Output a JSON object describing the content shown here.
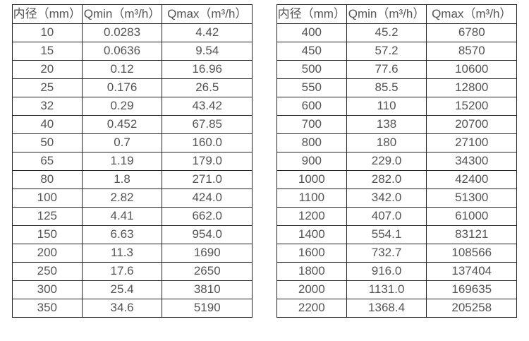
{
  "page": {
    "background_color": "#ffffff",
    "border_color": "#262626",
    "text_color": "#545454"
  },
  "table_left": {
    "headers": [
      "内径（mm）",
      "Qmin（m³/h）",
      "Qmax（m³/h）"
    ],
    "rows": [
      [
        "10",
        "0.0283",
        "4.42"
      ],
      [
        "15",
        "0.0636",
        "9.54"
      ],
      [
        "20",
        "0.12",
        "16.96"
      ],
      [
        "25",
        "0.176",
        "26.5"
      ],
      [
        "32",
        "0.29",
        "43.42"
      ],
      [
        "40",
        "0.452",
        "67.85"
      ],
      [
        "50",
        "0.7",
        "160.0"
      ],
      [
        "65",
        "1.19",
        "179.0"
      ],
      [
        "80",
        "1.8",
        "271.0"
      ],
      [
        "100",
        "2.82",
        "424.0"
      ],
      [
        "125",
        "4.41",
        "662.0"
      ],
      [
        "150",
        "6.63",
        "954.0"
      ],
      [
        "200",
        "11.3",
        "1690"
      ],
      [
        "250",
        "17.6",
        "2650"
      ],
      [
        "300",
        "25.4",
        "3810"
      ],
      [
        "350",
        "34.6",
        "5190"
      ]
    ]
  },
  "table_right": {
    "headers": [
      "内径（mm）",
      "Qmin（m³/h）",
      "Qmax（m³/h）"
    ],
    "rows": [
      [
        "400",
        "45.2",
        "6780"
      ],
      [
        "450",
        "57.2",
        "8570"
      ],
      [
        "500",
        "77.6",
        "10600"
      ],
      [
        "550",
        "85.5",
        "12800"
      ],
      [
        "600",
        "110",
        "15200"
      ],
      [
        "700",
        "138",
        "20700"
      ],
      [
        "800",
        "180",
        "27100"
      ],
      [
        "900",
        "229.0",
        "34300"
      ],
      [
        "1000",
        "282.0",
        "42400"
      ],
      [
        "1100",
        "342.0",
        "51300"
      ],
      [
        "1200",
        "407.0",
        "61000"
      ],
      [
        "1400",
        "554.1",
        "83121"
      ],
      [
        "1600",
        "732.7",
        "108566"
      ],
      [
        "1800",
        "916.0",
        "137404"
      ],
      [
        "2000",
        "1131.0",
        "169635"
      ],
      [
        "2200",
        "1368.4",
        "205258"
      ]
    ]
  }
}
